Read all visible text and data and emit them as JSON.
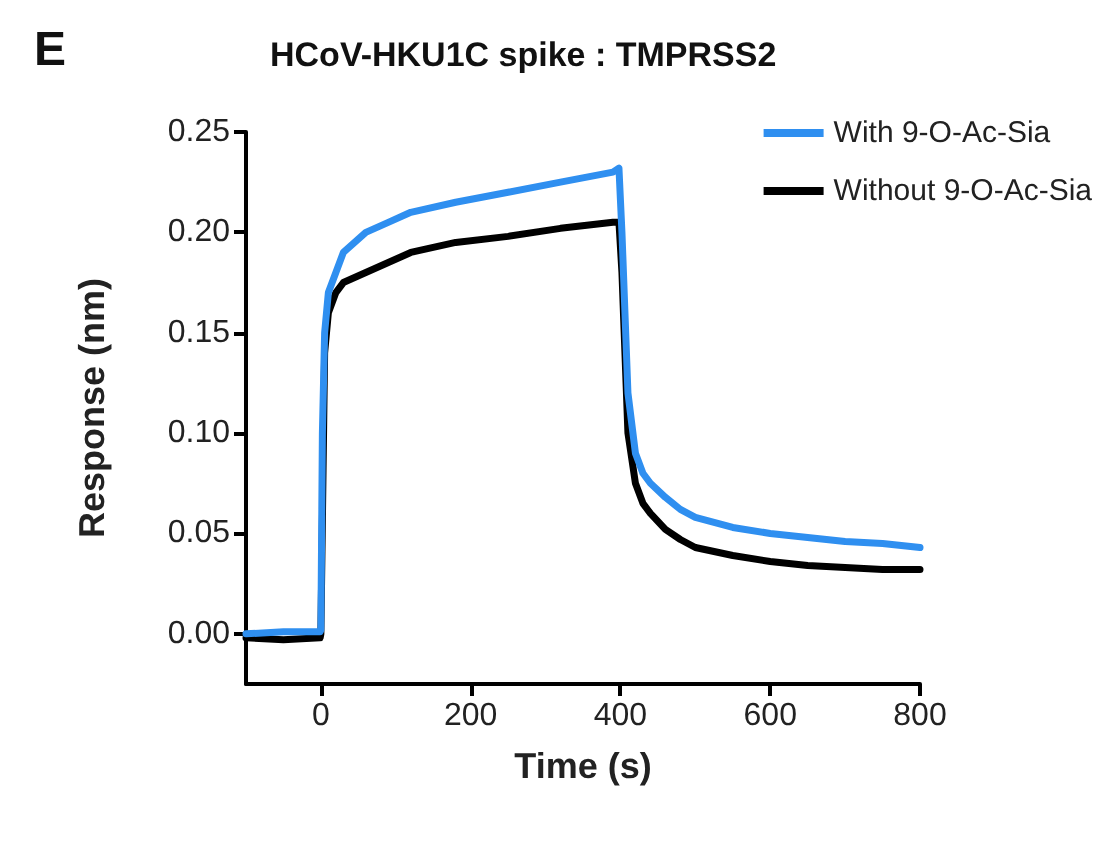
{
  "chart_data": {
    "type": "line",
    "title": "HCoV-HKU1C spike : TMPRSS2",
    "xlabel": "Time (s)",
    "ylabel": "Response (nm)",
    "annotations": [
      "E"
    ],
    "xlim": [
      -100,
      800
    ],
    "xticks": [
      0,
      200,
      400,
      600,
      800
    ],
    "ylim": [
      -0.025,
      0.25
    ],
    "yticks": [
      {
        "value": 0,
        "label": "0.00"
      },
      {
        "value": 0.05,
        "label": "0.05"
      },
      {
        "value": 0.1,
        "label": "0.10"
      },
      {
        "value": 0.15,
        "label": "0.15"
      },
      {
        "value": 0.2,
        "label": "0.20"
      },
      {
        "value": 0.25,
        "label": "0.25"
      }
    ],
    "grid": false,
    "legend": "top right",
    "marker": "none",
    "line_style": "solid",
    "series": [
      {
        "name": "With 9-O-Ac-Sia",
        "color": "#2f8ff0",
        "x": [
          -100,
          -50,
          -1,
          0,
          2,
          5,
          10,
          20,
          30,
          60,
          90,
          120,
          180,
          250,
          320,
          390,
          398,
          402,
          410,
          420,
          430,
          440,
          460,
          480,
          500,
          550,
          600,
          650,
          700,
          750,
          800
        ],
        "values": [
          0.0,
          0.001,
          0.001,
          0.002,
          0.1,
          0.15,
          0.17,
          0.18,
          0.19,
          0.2,
          0.205,
          0.21,
          0.215,
          0.22,
          0.225,
          0.23,
          0.232,
          0.2,
          0.12,
          0.09,
          0.08,
          0.075,
          0.068,
          0.062,
          0.058,
          0.053,
          0.05,
          0.048,
          0.046,
          0.045,
          0.043
        ]
      },
      {
        "name": "Without 9-O-Ac-Sia",
        "color": "#000000",
        "x": [
          -100,
          -50,
          -1,
          0,
          5,
          10,
          20,
          30,
          60,
          90,
          120,
          180,
          250,
          320,
          390,
          398,
          402,
          410,
          420,
          430,
          440,
          460,
          480,
          500,
          550,
          600,
          650,
          700,
          750,
          800
        ],
        "values": [
          -0.002,
          -0.003,
          -0.002,
          0.0,
          0.14,
          0.16,
          0.17,
          0.175,
          0.18,
          0.185,
          0.19,
          0.195,
          0.198,
          0.202,
          0.205,
          0.205,
          0.18,
          0.1,
          0.075,
          0.065,
          0.06,
          0.052,
          0.047,
          0.043,
          0.039,
          0.036,
          0.034,
          0.033,
          0.032,
          0.032
        ]
      }
    ]
  }
}
